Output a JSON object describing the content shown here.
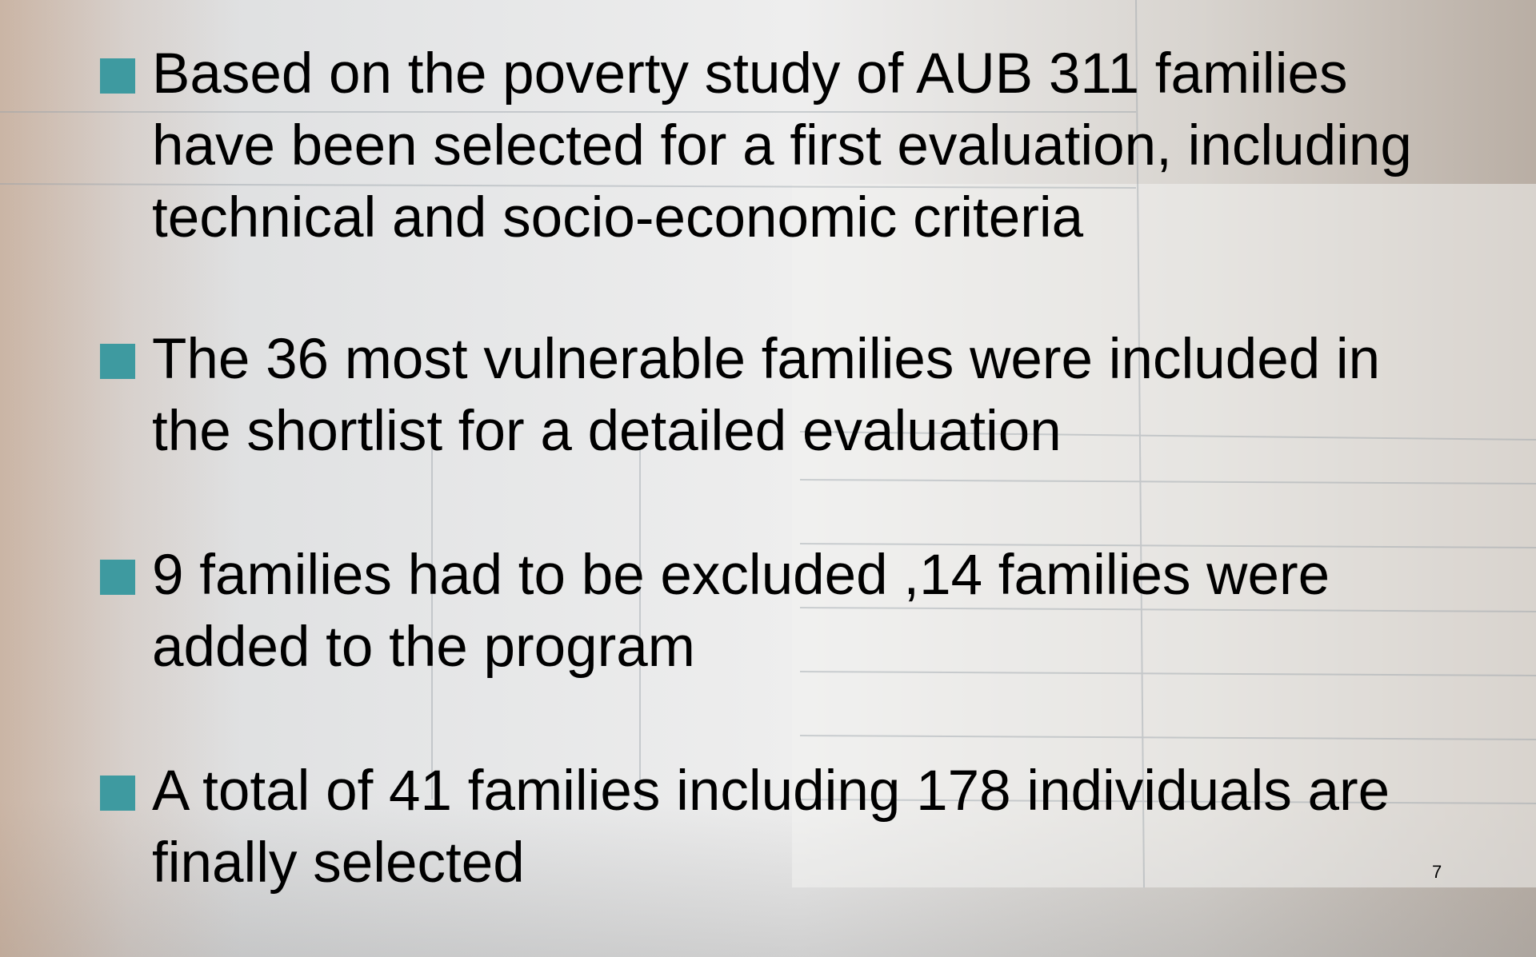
{
  "bullets": [
    {
      "lines": [
        "Based on the poverty study of  AUB 311 families",
        "have been selected for a first evaluation, including",
        "technical and socio-economic criteria"
      ]
    },
    {
      "lines": [
        "The 36 most vulnerable families were included in",
        "the shortlist for a detailed evaluation"
      ]
    },
    {
      "lines": [
        "9 families had to be excluded ,14 families were",
        "added to the program"
      ]
    },
    {
      "lines": [
        "A total of 41 families including 178 individuals are",
        "finally selected"
      ]
    }
  ],
  "page_number": "7"
}
